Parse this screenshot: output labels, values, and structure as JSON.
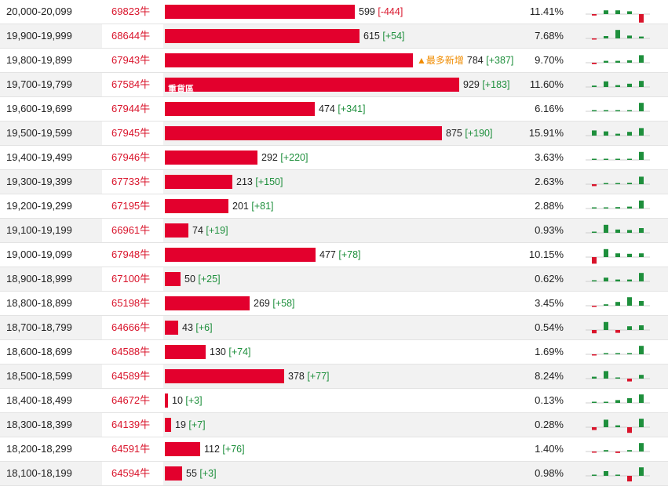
{
  "columns": [
    "range",
    "code",
    "oi",
    "change",
    "pct",
    "trend"
  ],
  "colors": {
    "bar": "#e3002d",
    "up": "#1e8f3c",
    "down": "#d9142b",
    "tag_new": "#f08c00"
  },
  "bar_scale_max": 1000,
  "rows": [
    {
      "range": "20,000-20,099",
      "code": "69823牛",
      "oi": "599",
      "oi_value": 599,
      "change": "[-444]",
      "change_sign": "neg",
      "pct": "11.41%",
      "spark": [
        -0.15,
        0.4,
        0.4,
        0.3,
        -0.9
      ]
    },
    {
      "range": "19,900-19,999",
      "code": "68644牛",
      "oi": "615",
      "oi_value": 615,
      "change": "[+54]",
      "change_sign": "pos",
      "pct": "7.68%",
      "spark": [
        -0.1,
        0.25,
        0.9,
        0.3,
        0.2
      ]
    },
    {
      "range": "19,800-19,899",
      "code": "67943牛",
      "oi": "784",
      "oi_value": 784,
      "change": "[+387]",
      "change_sign": "pos",
      "pct": "9.70%",
      "tag_new": "▲最多新增",
      "spark": [
        -0.15,
        0.2,
        0.2,
        0.25,
        0.8
      ]
    },
    {
      "range": "19,700-19,799",
      "code": "67584牛",
      "oi": "929",
      "oi_value": 929,
      "change": "[+183]",
      "change_sign": "pos",
      "pct": "11.60%",
      "tag_heavy": "重貨區",
      "spark": [
        0.15,
        0.6,
        0.2,
        0.35,
        0.65
      ]
    },
    {
      "range": "19,600-19,699",
      "code": "67944牛",
      "oi": "474",
      "oi_value": 474,
      "change": "[+341]",
      "change_sign": "pos",
      "pct": "6.16%",
      "spark": [
        0.03,
        0.05,
        0.08,
        0.12,
        0.9
      ]
    },
    {
      "range": "19,500-19,599",
      "code": "67945牛",
      "oi": "875",
      "oi_value": 875,
      "change": "[+190]",
      "change_sign": "pos",
      "pct": "15.91%",
      "spark": [
        0.55,
        0.45,
        0.2,
        0.4,
        0.8
      ]
    },
    {
      "range": "19,400-19,499",
      "code": "67946牛",
      "oi": "292",
      "oi_value": 292,
      "change": "[+220]",
      "change_sign": "pos",
      "pct": "3.63%",
      "spark": [
        0.08,
        0.1,
        0.05,
        0.1,
        0.85
      ]
    },
    {
      "range": "19,300-19,399",
      "code": "67733牛",
      "oi": "213",
      "oi_value": 213,
      "change": "[+150]",
      "change_sign": "pos",
      "pct": "2.63%",
      "spark": [
        -0.2,
        0.12,
        0.1,
        0.15,
        0.8
      ]
    },
    {
      "range": "19,200-19,299",
      "code": "67195牛",
      "oi": "201",
      "oi_value": 201,
      "change": "[+81]",
      "change_sign": "pos",
      "pct": "2.88%",
      "spark": [
        0.1,
        0.12,
        0.15,
        0.2,
        0.85
      ]
    },
    {
      "range": "19,100-19,199",
      "code": "66961牛",
      "oi": "74",
      "oi_value": 74,
      "change": "[+19]",
      "change_sign": "pos",
      "pct": "0.93%",
      "spark": [
        0.1,
        0.85,
        0.35,
        0.3,
        0.5
      ]
    },
    {
      "range": "19,000-19,099",
      "code": "67948牛",
      "oi": "477",
      "oi_value": 477,
      "change": "[+78]",
      "change_sign": "pos",
      "pct": "10.15%",
      "spark": [
        -0.7,
        0.85,
        0.4,
        0.35,
        0.4
      ]
    },
    {
      "range": "18,900-18,999",
      "code": "67100牛",
      "oi": "50",
      "oi_value": 50,
      "change": "[+25]",
      "change_sign": "pos",
      "pct": "0.62%",
      "spark": [
        0.05,
        0.4,
        0.2,
        0.2,
        0.9
      ]
    },
    {
      "range": "18,800-18,899",
      "code": "65198牛",
      "oi": "269",
      "oi_value": 269,
      "change": "[+58]",
      "change_sign": "pos",
      "pct": "3.45%",
      "spark": [
        -0.1,
        0.15,
        0.4,
        0.9,
        0.5
      ]
    },
    {
      "range": "18,700-18,799",
      "code": "64666牛",
      "oi": "43",
      "oi_value": 43,
      "change": "[+6]",
      "change_sign": "pos",
      "pct": "0.54%",
      "spark": [
        -0.35,
        0.85,
        -0.3,
        0.4,
        0.5
      ]
    },
    {
      "range": "18,600-18,699",
      "code": "64588牛",
      "oi": "130",
      "oi_value": 130,
      "change": "[+74]",
      "change_sign": "pos",
      "pct": "1.69%",
      "spark": [
        -0.1,
        0.12,
        0.1,
        0.12,
        0.9
      ]
    },
    {
      "range": "18,500-18,599",
      "code": "64589牛",
      "oi": "378",
      "oi_value": 378,
      "change": "[+77]",
      "change_sign": "pos",
      "pct": "8.24%",
      "spark": [
        0.2,
        0.8,
        0.1,
        -0.3,
        0.4
      ]
    },
    {
      "range": "18,400-18,499",
      "code": "64672牛",
      "oi": "10",
      "oi_value": 10,
      "change": "[+3]",
      "change_sign": "pos",
      "pct": "0.13%",
      "spark": [
        0.02,
        0.03,
        0.3,
        0.5,
        0.9
      ]
    },
    {
      "range": "18,300-18,399",
      "code": "64139牛",
      "oi": "19",
      "oi_value": 19,
      "change": "[+7]",
      "change_sign": "pos",
      "pct": "0.28%",
      "spark": [
        -0.3,
        0.8,
        0.2,
        -0.6,
        0.9
      ]
    },
    {
      "range": "18,200-18,299",
      "code": "64591牛",
      "oi": "112",
      "oi_value": 112,
      "change": "[+76]",
      "change_sign": "pos",
      "pct": "1.40%",
      "spark": [
        -0.1,
        0.15,
        -0.15,
        0.15,
        0.9
      ]
    },
    {
      "range": "18,100-18,199",
      "code": "64594牛",
      "oi": "55",
      "oi_value": 55,
      "change": "[+3]",
      "change_sign": "pos",
      "pct": "0.98%",
      "spark": [
        0.05,
        0.5,
        0.1,
        -0.6,
        0.9
      ]
    }
  ]
}
